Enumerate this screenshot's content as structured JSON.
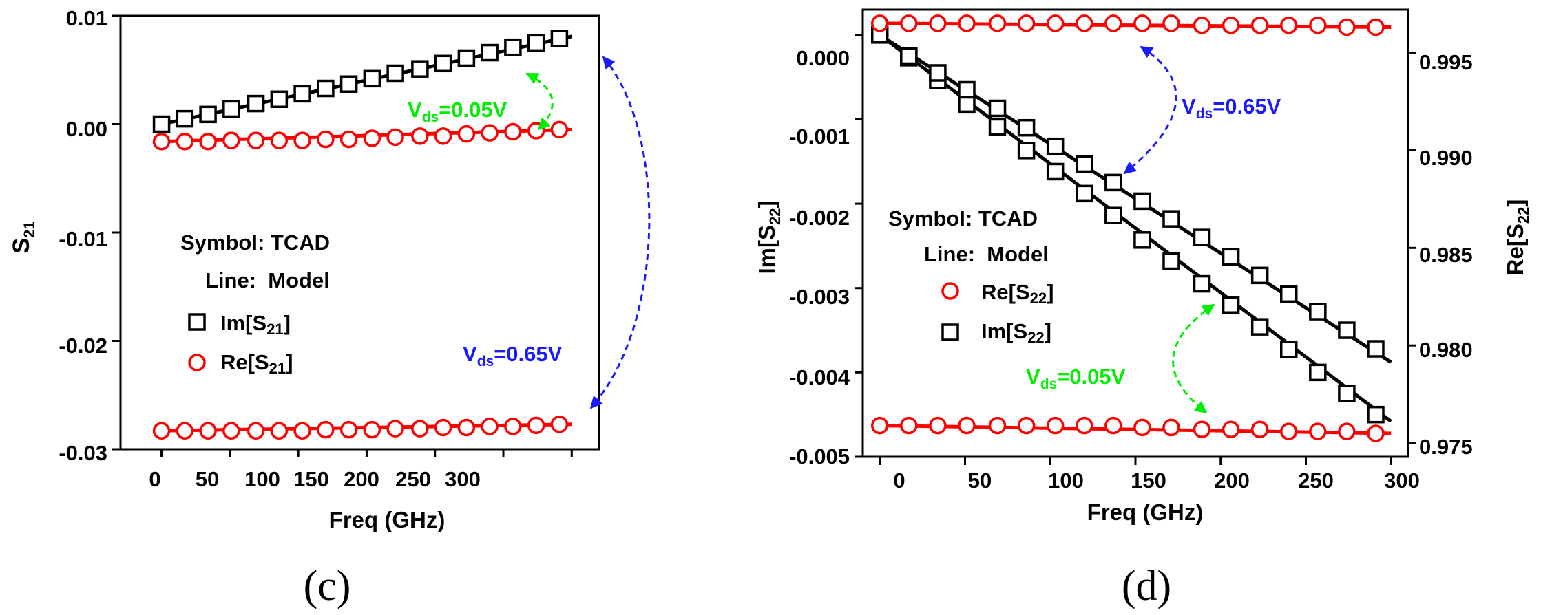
{
  "chart_data": [
    {
      "type": "scatter",
      "panel_label": "(c)",
      "xlabel": "Freq (GHz)",
      "ylabel_main": "S",
      "ylabel_sub": "21",
      "xlim": [
        -30,
        320
      ],
      "ylim": [
        -0.03,
        0.01
      ],
      "x_ticks": [
        0,
        50,
        100,
        150,
        200,
        250,
        300
      ],
      "x_tick_labels": [
        "0",
        "50",
        "100",
        "150",
        "200",
        "250",
        "300"
      ],
      "y_ticks": [
        0.01,
        0.0,
        -0.01,
        -0.02,
        -0.03
      ],
      "y_tick_labels": [
        "0.01",
        "0.00",
        "-0.01",
        "-0.02",
        "-0.03"
      ],
      "legend": {
        "symbol_text": "Symbol: TCAD",
        "line_text": "Line:  Model",
        "entries": [
          {
            "label_main": "Im[S",
            "label_sub": "21",
            "label_end": "]",
            "marker": "square",
            "color": "#000000"
          },
          {
            "label_main": "Re[S",
            "label_sub": "21",
            "label_end": "]",
            "marker": "circle",
            "color": "#ff0000"
          }
        ]
      },
      "annotations": [
        {
          "main": "V",
          "sub": "ds",
          "tail": "=0.05V",
          "color": "#00ee00"
        },
        {
          "main": "V",
          "sub": "ds",
          "tail": "=0.65V",
          "color": "#1a1aff"
        }
      ],
      "series": [
        {
          "name": "Im[S21] Vds=0.05V",
          "marker": "square",
          "color": "#000000",
          "axis": "left",
          "x": [
            0,
            17,
            34,
            51,
            69,
            86,
            103,
            120,
            137,
            154,
            171,
            189,
            206,
            223,
            240,
            257,
            274,
            291
          ],
          "y": [
            0.0,
            0.0005,
            0.0009,
            0.0014,
            0.0019,
            0.0023,
            0.0028,
            0.0033,
            0.0037,
            0.0042,
            0.0047,
            0.0051,
            0.0056,
            0.0061,
            0.0066,
            0.0071,
            0.0075,
            0.0079
          ],
          "model_x": [
            0,
            300
          ],
          "model_y": [
            0.0,
            0.0081
          ]
        },
        {
          "name": "Re[S21] Vds=0.05V",
          "marker": "circle",
          "color": "#ff0000",
          "axis": "left",
          "x": [
            0,
            17,
            34,
            51,
            69,
            86,
            103,
            120,
            137,
            154,
            171,
            189,
            206,
            223,
            240,
            257,
            274,
            291
          ],
          "y": [
            -0.0016,
            -0.0016,
            -0.0016,
            -0.0015,
            -0.0015,
            -0.0015,
            -0.0015,
            -0.0014,
            -0.0014,
            -0.0013,
            -0.0012,
            -0.0011,
            -0.0011,
            -0.0009,
            -0.0008,
            -0.0007,
            -0.0006,
            -0.0005
          ],
          "model_x": [
            0,
            300
          ],
          "model_y": [
            -0.0016,
            -0.0005
          ]
        },
        {
          "name": "Re[S21] Vds=0.65V",
          "marker": "circle",
          "color": "#ff0000",
          "axis": "left",
          "x": [
            0,
            17,
            34,
            51,
            69,
            86,
            103,
            120,
            137,
            154,
            171,
            189,
            206,
            223,
            240,
            257,
            274,
            291
          ],
          "y": [
            -0.0283,
            -0.0283,
            -0.0283,
            -0.0283,
            -0.0283,
            -0.0283,
            -0.0283,
            -0.0282,
            -0.0282,
            -0.0282,
            -0.0281,
            -0.0281,
            -0.028,
            -0.028,
            -0.0279,
            -0.0279,
            -0.0278,
            -0.0277
          ],
          "model_x": [
            0,
            300
          ],
          "model_y": [
            -0.0283,
            -0.0277
          ]
        }
      ]
    },
    {
      "type": "scatter",
      "panel_label": "(d)",
      "xlabel": "Freq (GHz)",
      "ylabel_main": "Im[S",
      "ylabel_sub": "22",
      "ylabel_end": "]",
      "y2label_main": "Re[S",
      "y2label_sub": "22",
      "y2label_end": "]",
      "xlim": [
        -10,
        310
      ],
      "ylim": [
        -0.005,
        0.0003
      ],
      "y2lim": [
        0.9743,
        0.9972
      ],
      "x_ticks": [
        0,
        50,
        100,
        150,
        200,
        250,
        300
      ],
      "x_tick_labels": [
        "0",
        "50",
        "100",
        "150",
        "200",
        "250",
        "300"
      ],
      "y_ticks": [
        0.0,
        -0.001,
        -0.002,
        -0.003,
        -0.004,
        -0.005
      ],
      "y_tick_labels": [
        "0.000",
        "-0.001",
        "-0.002",
        "-0.003",
        "-0.004",
        "-0.005"
      ],
      "y2_ticks": [
        0.995,
        0.99,
        0.985,
        0.98,
        0.975
      ],
      "y2_tick_labels": [
        "0.995",
        "0.990",
        "0.985",
        "0.980",
        "0.975"
      ],
      "legend": {
        "symbol_text": "Symbol: TCAD",
        "line_text": "Line:  Model",
        "entries": [
          {
            "label_main": "Re[S",
            "label_sub": "22",
            "label_end": "]",
            "marker": "circle",
            "color": "#ff0000"
          },
          {
            "label_main": "Im[S",
            "label_sub": "22",
            "label_end": "]",
            "marker": "square",
            "color": "#000000"
          }
        ]
      },
      "annotations": [
        {
          "main": "V",
          "sub": "ds",
          "tail": "=0.65V",
          "color": "#1a1aff"
        },
        {
          "main": "V",
          "sub": "ds",
          "tail": "=0.05V",
          "color": "#00ee00"
        }
      ],
      "series": [
        {
          "name": "Im[S22] Vds=0.65V",
          "marker": "square",
          "color": "#000000",
          "axis": "left",
          "x": [
            0,
            17,
            34,
            51,
            69,
            86,
            103,
            120,
            137,
            154,
            171,
            189,
            206,
            223,
            240,
            257,
            274,
            291
          ],
          "y": [
            0.0,
            -0.00027,
            -0.00054,
            -0.00082,
            -0.00109,
            -0.00137,
            -0.00162,
            -0.00188,
            -0.00214,
            -0.00243,
            -0.00268,
            -0.00295,
            -0.0032,
            -0.00346,
            -0.00373,
            -0.004,
            -0.00425,
            -0.0045
          ],
          "model_x": [
            0,
            300
          ],
          "model_y": [
            0.0,
            -0.00458
          ]
        },
        {
          "name": "Im[S22] Vds=0.05V",
          "marker": "square",
          "color": "#000000",
          "axis": "left",
          "x": [
            0,
            17,
            34,
            51,
            69,
            86,
            103,
            120,
            137,
            154,
            171,
            189,
            206,
            223,
            240,
            257,
            274,
            291
          ],
          "y": [
            0.0,
            -0.00025,
            -0.00045,
            -0.00065,
            -0.00087,
            -0.0011,
            -0.00132,
            -0.00153,
            -0.00175,
            -0.00197,
            -0.00218,
            -0.0024,
            -0.00263,
            -0.00285,
            -0.00307,
            -0.00328,
            -0.0035,
            -0.00372
          ],
          "model_x": [
            0,
            300
          ],
          "model_y": [
            0.0,
            -0.00388
          ]
        },
        {
          "name": "Re[S22] Vds=0.65V",
          "marker": "circle",
          "color": "#ff0000",
          "axis": "right",
          "x": [
            0,
            17,
            34,
            51,
            69,
            86,
            103,
            120,
            137,
            154,
            171,
            189,
            206,
            223,
            240,
            257,
            274,
            291
          ],
          "y": [
            0.9965,
            0.9965,
            0.9965,
            0.9965,
            0.9965,
            0.9965,
            0.9965,
            0.9965,
            0.9965,
            0.9965,
            0.9965,
            0.9964,
            0.9964,
            0.9964,
            0.9964,
            0.9964,
            0.9963,
            0.9963
          ],
          "model_x": [
            0,
            300
          ],
          "model_y": [
            0.9965,
            0.9963
          ]
        },
        {
          "name": "Re[S22] Vds=0.05V",
          "marker": "circle",
          "color": "#ff0000",
          "axis": "right",
          "x": [
            0,
            17,
            34,
            51,
            69,
            86,
            103,
            120,
            137,
            154,
            171,
            189,
            206,
            223,
            240,
            257,
            274,
            291
          ],
          "y": [
            0.9759,
            0.9759,
            0.9759,
            0.9759,
            0.9759,
            0.9759,
            0.9759,
            0.9759,
            0.9759,
            0.9758,
            0.9758,
            0.9757,
            0.9757,
            0.9757,
            0.9756,
            0.9756,
            0.9756,
            0.9755
          ],
          "model_x": [
            0,
            300
          ],
          "model_y": [
            0.9759,
            0.9755
          ]
        }
      ]
    }
  ]
}
